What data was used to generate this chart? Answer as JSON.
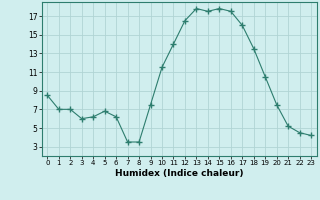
{
  "x": [
    0,
    1,
    2,
    3,
    4,
    5,
    6,
    7,
    8,
    9,
    10,
    11,
    12,
    13,
    14,
    15,
    16,
    17,
    18,
    19,
    20,
    21,
    22,
    23
  ],
  "y": [
    8.5,
    7.0,
    7.0,
    6.0,
    6.2,
    6.8,
    6.2,
    3.5,
    3.5,
    7.5,
    11.5,
    14.0,
    16.5,
    17.8,
    17.5,
    17.8,
    17.5,
    16.0,
    13.5,
    10.5,
    7.5,
    5.2,
    4.5,
    4.2
  ],
  "xlim": [
    -0.5,
    23.5
  ],
  "ylim": [
    2,
    18.5
  ],
  "yticks": [
    3,
    5,
    7,
    9,
    11,
    13,
    15,
    17
  ],
  "xticks": [
    0,
    1,
    2,
    3,
    4,
    5,
    6,
    7,
    8,
    9,
    10,
    11,
    12,
    13,
    14,
    15,
    16,
    17,
    18,
    19,
    20,
    21,
    22,
    23
  ],
  "xlabel": "Humidex (Indice chaleur)",
  "line_color": "#2d7d6e",
  "marker": "+",
  "marker_size": 4,
  "bg_color": "#d0eeee",
  "grid_color": "#b0d4d4",
  "title": ""
}
